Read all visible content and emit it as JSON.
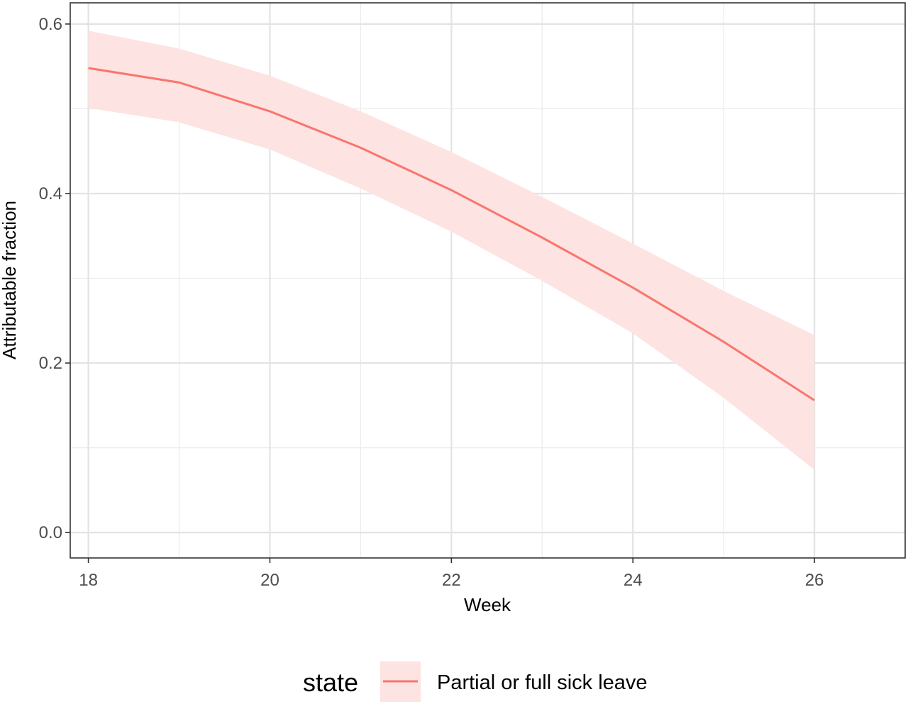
{
  "chart_data": {
    "type": "line",
    "xlabel": "Week",
    "ylabel": "Attributable fraction",
    "xlim": [
      17.8,
      27.0
    ],
    "ylim": [
      -0.03,
      0.625
    ],
    "x_ticks": [
      18,
      20,
      22,
      24,
      26
    ],
    "x_tick_labels": [
      "18",
      "20",
      "22",
      "24",
      "26"
    ],
    "x_minor_ticks": [
      19,
      21,
      23,
      25
    ],
    "y_ticks": [
      0.0,
      0.2,
      0.4,
      0.6
    ],
    "y_tick_labels": [
      "0.0",
      "0.2",
      "0.4",
      "0.6"
    ],
    "y_minor_ticks": [
      0.1,
      0.3,
      0.5
    ],
    "grid": true,
    "legend": {
      "position": "bottom",
      "title": "state",
      "entries": [
        "Partial or full sick leave"
      ]
    },
    "series": [
      {
        "name": "Partial or full sick leave",
        "color": "#F8766D",
        "ribbon_color": "#FDE3E1",
        "x": [
          18,
          19,
          20,
          21,
          22,
          23,
          24,
          25,
          26
        ],
        "y": [
          0.548,
          0.531,
          0.497,
          0.454,
          0.404,
          0.348,
          0.289,
          0.225,
          0.156
        ],
        "lower": [
          0.501,
          0.484,
          0.452,
          0.406,
          0.355,
          0.297,
          0.235,
          0.159,
          0.074
        ],
        "upper": [
          0.592,
          0.571,
          0.539,
          0.497,
          0.449,
          0.396,
          0.341,
          0.285,
          0.233
        ]
      }
    ]
  }
}
